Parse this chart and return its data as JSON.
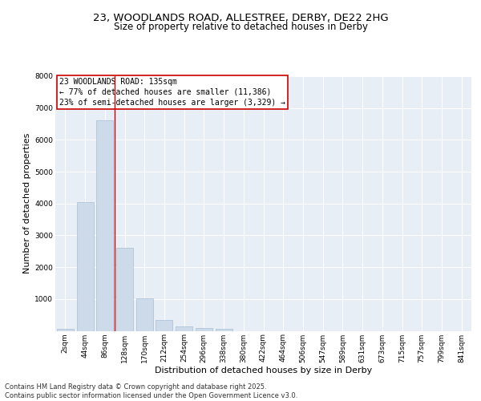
{
  "title_line1": "23, WOODLANDS ROAD, ALLESTREE, DERBY, DE22 2HG",
  "title_line2": "Size of property relative to detached houses in Derby",
  "xlabel": "Distribution of detached houses by size in Derby",
  "ylabel": "Number of detached properties",
  "bar_labels": [
    "2sqm",
    "44sqm",
    "86sqm",
    "128sqm",
    "170sqm",
    "212sqm",
    "254sqm",
    "296sqm",
    "338sqm",
    "380sqm",
    "422sqm",
    "464sqm",
    "506sqm",
    "547sqm",
    "589sqm",
    "631sqm",
    "673sqm",
    "715sqm",
    "757sqm",
    "799sqm",
    "841sqm"
  ],
  "bar_values": [
    70,
    4050,
    6620,
    2620,
    1010,
    350,
    130,
    100,
    60,
    0,
    0,
    0,
    0,
    0,
    0,
    0,
    0,
    0,
    0,
    0,
    0
  ],
  "bar_color": "#ccdaea",
  "bar_edgecolor": "#a8bfd4",
  "vline_color": "#cc0000",
  "vline_position": 2.5,
  "annotation_text": "23 WOODLANDS ROAD: 135sqm\n← 77% of detached houses are smaller (11,386)\n23% of semi-detached houses are larger (3,329) →",
  "annotation_box_facecolor": "#ffffff",
  "annotation_box_edgecolor": "#cc0000",
  "ylim": [
    0,
    8000
  ],
  "yticks": [
    0,
    1000,
    2000,
    3000,
    4000,
    5000,
    6000,
    7000,
    8000
  ],
  "background_color": "#e8eef6",
  "grid_color": "#ffffff",
  "fig_facecolor": "#ffffff",
  "footer_text": "Contains HM Land Registry data © Crown copyright and database right 2025.\nContains public sector information licensed under the Open Government Licence v3.0.",
  "title_fontsize": 9.5,
  "subtitle_fontsize": 8.5,
  "axis_label_fontsize": 8,
  "tick_fontsize": 6.5,
  "annotation_fontsize": 7,
  "footer_fontsize": 6
}
